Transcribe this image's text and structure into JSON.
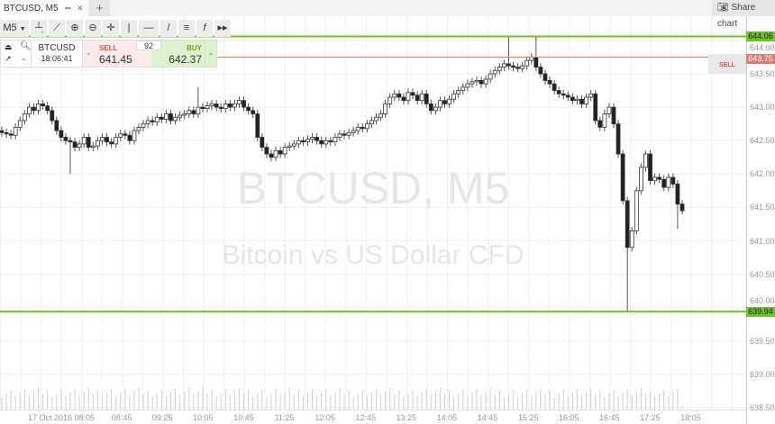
{
  "tab": {
    "title": "BTCUSD, M5",
    "grid_icon": "grid-icon",
    "close_icon": "close-icon"
  },
  "new_tab_label": "+",
  "share_button": {
    "label": "Share chart",
    "icon": "camera-icon"
  },
  "toolbar": {
    "timeframe": "M5",
    "tools": [
      "bar-chart-icon",
      "indicators-icon",
      "zoom-in-icon",
      "zoom-out-icon",
      "crosshair-icon",
      "vertical-line-icon",
      "horizontal-line-icon",
      "trend-line-icon",
      "pitchfork-icon",
      "function-icon",
      "fast-forward-icon"
    ]
  },
  "trade_widget": {
    "symbol": "BTCUSD",
    "time": "18:06:41",
    "sell_label": "SELL",
    "sell_price": "641.45",
    "buy_label": "BUY",
    "buy_price": "642.37",
    "spread": "92"
  },
  "watermark": {
    "title": "BTCUSD, M5",
    "subtitle": "Bitcoin vs US Dollar CFD"
  },
  "price_lines": {
    "upper": "644.06",
    "lower": "639.94",
    "order": "643.75",
    "order_label": "SELL"
  },
  "colors": {
    "green": "#6cc425",
    "red": "#e07a72",
    "sell_red": "#d9534f",
    "buy_green": "#7a9a1a"
  },
  "chart_data": {
    "type": "candlestick",
    "ylim": [
      638.4,
      644.2
    ],
    "y_ticks": [
      "644.00",
      "643.50",
      "643.00",
      "642.50",
      "642.00",
      "641.50",
      "641.00",
      "640.50",
      "640.00",
      "639.50",
      "639.00",
      "638.50"
    ],
    "x_ticks": [
      "17 Oct 2016 08:05",
      "08:45",
      "09:25",
      "10:05",
      "10:45",
      "11:25",
      "12:05",
      "12:45",
      "13:25",
      "14:05",
      "14:45",
      "15:25",
      "16:05",
      "16:45",
      "17:25",
      "18:05"
    ],
    "grid": true,
    "closes": [
      642.62,
      642.6,
      642.58,
      642.7,
      642.8,
      642.9,
      643.0,
      642.95,
      643.05,
      643.02,
      642.95,
      642.8,
      642.65,
      642.55,
      642.5,
      642.48,
      642.4,
      642.45,
      642.55,
      642.4,
      642.42,
      642.5,
      642.55,
      642.48,
      642.45,
      642.55,
      642.6,
      642.58,
      642.5,
      642.65,
      642.7,
      642.75,
      642.8,
      642.78,
      642.85,
      642.82,
      642.9,
      642.8,
      642.85,
      642.88,
      642.9,
      642.95,
      642.9,
      643.0,
      642.98,
      643.02,
      643.05,
      643.0,
      642.98,
      643.05,
      643.0,
      643.05,
      643.1,
      643.0,
      642.95,
      642.9,
      642.55,
      642.4,
      642.3,
      642.25,
      642.35,
      642.3,
      642.4,
      642.42,
      642.45,
      642.5,
      642.48,
      642.52,
      642.55,
      642.5,
      642.45,
      642.5,
      642.48,
      642.55,
      642.6,
      642.58,
      642.62,
      642.65,
      642.7,
      642.68,
      642.75,
      642.8,
      642.85,
      642.9,
      643.05,
      643.15,
      643.2,
      643.15,
      643.1,
      643.22,
      643.18,
      643.1,
      643.2,
      643.05,
      642.95,
      643.0,
      643.1,
      643.05,
      643.12,
      643.2,
      643.25,
      643.3,
      643.35,
      643.38,
      643.4,
      643.35,
      643.42,
      643.5,
      643.55,
      643.6,
      643.65,
      643.62,
      643.6,
      643.58,
      643.62,
      643.7,
      643.75,
      643.6,
      643.5,
      643.4,
      643.35,
      643.25,
      643.2,
      643.18,
      643.15,
      643.1,
      643.12,
      643.05,
      643.15,
      643.2,
      642.8,
      642.7,
      642.9,
      643.0,
      642.75,
      642.3,
      641.6,
      640.9,
      641.15,
      641.75,
      642.1,
      642.3,
      641.9,
      641.95,
      641.92,
      641.8,
      641.95,
      641.85,
      641.55,
      641.45
    ],
    "high_overrides": {
      "43": 643.3,
      "111": 644.06,
      "117": 644.06,
      "141": 642.35
    },
    "low_overrides": {
      "15": 642.0,
      "137": 639.94,
      "148": 641.18
    }
  }
}
